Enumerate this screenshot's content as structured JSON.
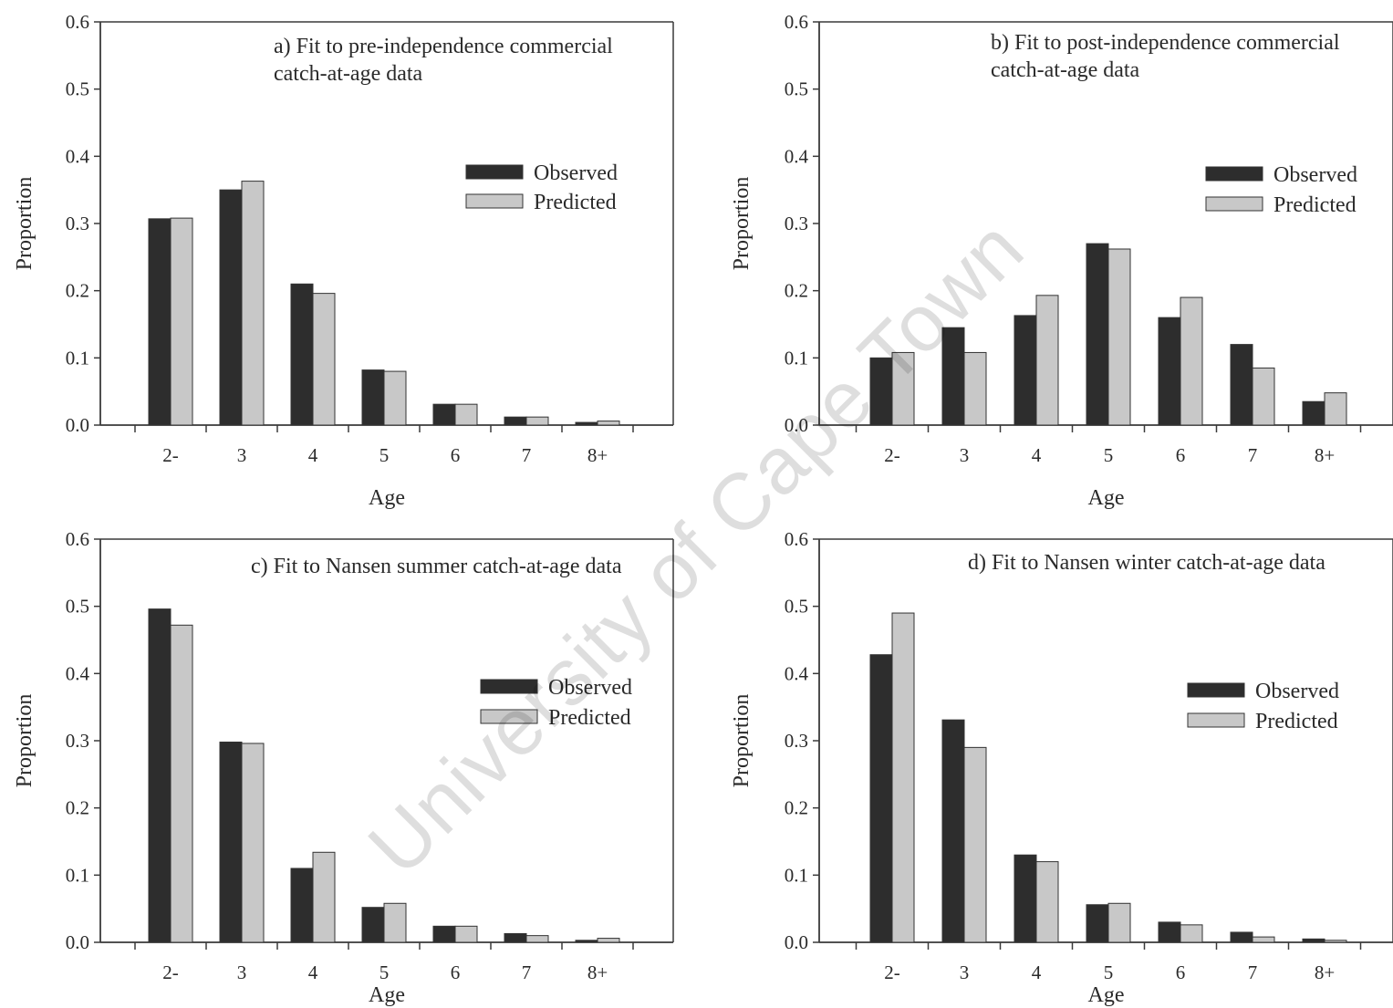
{
  "colors": {
    "observed": "#2d2d2d",
    "predicted": "#c8c8c8",
    "axis": "#3a3a3a"
  },
  "watermark": "University of Cape Town",
  "chart_data": [
    {
      "type": "bar",
      "panel": "a",
      "title_lines": [
        "a) Fit to pre-independence commercial",
        "catch-at-age data"
      ],
      "xlabel": "Age",
      "ylabel": "Proportion",
      "ylim": [
        0,
        0.6
      ],
      "yticks": [
        "0.0",
        "0.1",
        "0.2",
        "0.3",
        "0.4",
        "0.5",
        "0.6"
      ],
      "categories": [
        "2-",
        "3",
        "4",
        "5",
        "6",
        "7",
        "8+"
      ],
      "legend_position": "right",
      "series": [
        {
          "name": "Observed",
          "values": [
            0.307,
            0.35,
            0.21,
            0.082,
            0.031,
            0.012,
            0.004
          ]
        },
        {
          "name": "Predicted",
          "values": [
            0.308,
            0.363,
            0.196,
            0.08,
            0.031,
            0.012,
            0.006
          ]
        }
      ]
    },
    {
      "type": "bar",
      "panel": "b",
      "title_lines": [
        "b) Fit to post-independence commercial",
        "catch-at-age data"
      ],
      "xlabel": "Age",
      "ylabel": "Proportion",
      "ylim": [
        0,
        0.6
      ],
      "yticks": [
        "0.0",
        "0.1",
        "0.2",
        "0.3",
        "0.4",
        "0.5",
        "0.6"
      ],
      "categories": [
        "2-",
        "3",
        "4",
        "5",
        "6",
        "7",
        "8+"
      ],
      "legend_position": "right",
      "series": [
        {
          "name": "Observed",
          "values": [
            0.1,
            0.145,
            0.163,
            0.27,
            0.16,
            0.12,
            0.035
          ]
        },
        {
          "name": "Predicted",
          "values": [
            0.108,
            0.108,
            0.193,
            0.262,
            0.19,
            0.085,
            0.048
          ]
        }
      ]
    },
    {
      "type": "bar",
      "panel": "c",
      "title_lines": [
        "c) Fit to Nansen summer catch-at-age data"
      ],
      "xlabel": "Age",
      "ylabel": "Proportion",
      "ylim": [
        0,
        0.6
      ],
      "yticks": [
        "0.0",
        "0.1",
        "0.2",
        "0.3",
        "0.4",
        "0.5",
        "0.6"
      ],
      "categories": [
        "2-",
        "3",
        "4",
        "5",
        "6",
        "7",
        "8+"
      ],
      "legend_position": "right",
      "series": [
        {
          "name": "Observed",
          "values": [
            0.496,
            0.298,
            0.11,
            0.052,
            0.024,
            0.013,
            0.003
          ]
        },
        {
          "name": "Predicted",
          "values": [
            0.472,
            0.296,
            0.134,
            0.058,
            0.024,
            0.01,
            0.006
          ]
        }
      ]
    },
    {
      "type": "bar",
      "panel": "d",
      "title_lines": [
        "d) Fit to Nansen winter catch-at-age data"
      ],
      "xlabel": "Age",
      "ylabel": "Proportion",
      "ylim": [
        0,
        0.6
      ],
      "yticks": [
        "0.0",
        "0.1",
        "0.2",
        "0.3",
        "0.4",
        "0.5",
        "0.6"
      ],
      "categories": [
        "2-",
        "3",
        "4",
        "5",
        "6",
        "7",
        "8+"
      ],
      "legend_position": "right",
      "series": [
        {
          "name": "Observed",
          "values": [
            0.428,
            0.331,
            0.13,
            0.056,
            0.03,
            0.015,
            0.005
          ]
        },
        {
          "name": "Predicted",
          "values": [
            0.49,
            0.29,
            0.12,
            0.058,
            0.026,
            0.008,
            0.003
          ]
        }
      ]
    }
  ]
}
